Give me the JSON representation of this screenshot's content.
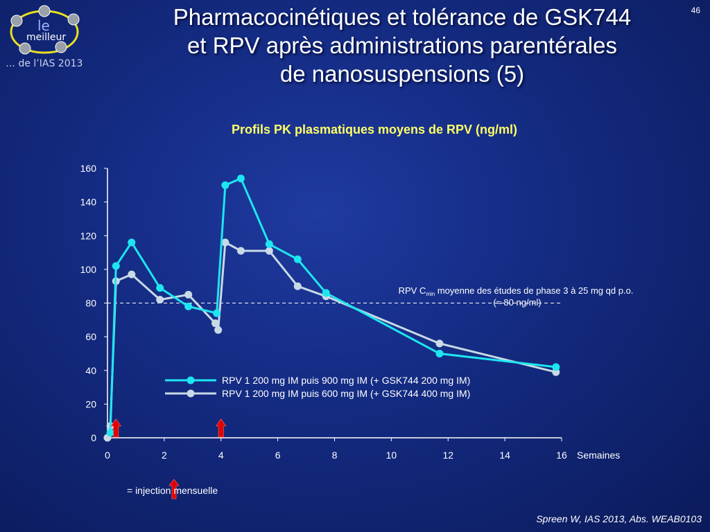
{
  "slide": {
    "number": "46",
    "title_lines": [
      "Pharmacocinétiques et tolérance de GSK744",
      "et RPV après administrations parentérales",
      "de nanosuspensions (5)"
    ],
    "logo": {
      "text_top": "le",
      "text_bottom": "meilleur",
      "caption": "… de l’IAS 2013"
    },
    "footnote": "Spreen W, IAS 2013, Abs. WEAB0103",
    "injection_legend": "= injection mensuelle"
  },
  "chart_data": {
    "type": "line",
    "title": "Profils PK plasmatiques moyens de RPV (ng/ml)",
    "xlabel": "Semaines",
    "ylabel": "",
    "xlim": [
      0,
      16
    ],
    "ylim": [
      0,
      160
    ],
    "xticks": [
      "0",
      "2",
      "4",
      "6",
      "8",
      "10",
      "12",
      "14",
      "16"
    ],
    "yticks": [
      "0",
      "20",
      "40",
      "60",
      "80",
      "100",
      "120",
      "140",
      "160"
    ],
    "legend_position": "center",
    "series": [
      {
        "name": "RPV 1 200 mg IM puis 900 mg IM (+ GSK744 200 mg IM)",
        "color": "#1ee6f0",
        "x": [
          0.1,
          0.3,
          0.85,
          1.85,
          2.85,
          3.85,
          4.15,
          4.7,
          5.7,
          6.7,
          7.7,
          11.7,
          15.8
        ],
        "y": [
          3,
          102,
          116,
          89,
          78,
          74,
          150,
          154,
          115,
          106,
          86,
          50,
          42
        ]
      },
      {
        "name": "RPV 1 200 mg IM puis 600 mg IM (+ GSK744 400 mg IM)",
        "color": "#c8dae6",
        "x": [
          0,
          0.1,
          0.3,
          0.85,
          1.85,
          2.85,
          3.8,
          3.9,
          4.15,
          4.7,
          5.7,
          6.7,
          7.7,
          11.7,
          15.8
        ],
        "y": [
          0,
          7,
          93,
          97,
          82,
          85,
          68,
          64,
          116,
          111,
          111,
          90,
          84,
          56,
          39
        ]
      }
    ],
    "reference_line": {
      "y": 80,
      "label_main": "RPV C",
      "label_sub": "min",
      "label_rest": " moyenne des études de phase 3 à 25 mg qd p.o.",
      "label_line2": "(≈ 80 ng/ml)"
    },
    "injections_x": [
      0.3,
      4.0
    ],
    "injection_color": "#e00000"
  }
}
